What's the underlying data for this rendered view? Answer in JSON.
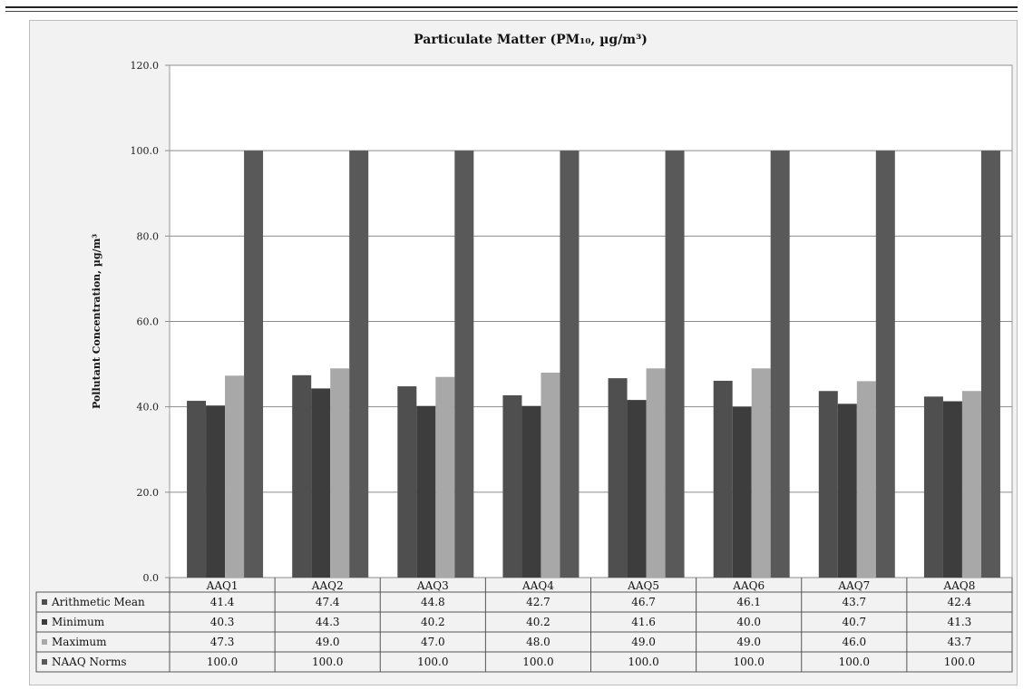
{
  "chart_data": {
    "type": "bar",
    "title": "Particulate Matter (PM₁₀, µg/m³)",
    "ylabel": "Pollutant Concentration, µg/m³",
    "xlabel": "",
    "ylim": [
      0,
      120
    ],
    "yticks": [
      "0.0",
      "20.0",
      "40.0",
      "60.0",
      "80.0",
      "100.0",
      "120.0"
    ],
    "grid": true,
    "legend": "data-table-bottom",
    "categories": [
      "AAQ1",
      "AAQ2",
      "AAQ3",
      "AAQ4",
      "AAQ5",
      "AAQ6",
      "AAQ7",
      "AAQ8"
    ],
    "series": [
      {
        "name": "Arithmetic Mean",
        "color": "#4f4f4f",
        "values": [
          41.4,
          47.4,
          44.8,
          42.7,
          46.7,
          46.1,
          43.7,
          42.4
        ],
        "labels": [
          "41.4",
          "47.4",
          "44.8",
          "42.7",
          "46.7",
          "46.1",
          "43.7",
          "42.4"
        ]
      },
      {
        "name": "Minimum",
        "color": "#3d3d3d",
        "values": [
          40.3,
          44.3,
          40.2,
          40.2,
          41.6,
          40.0,
          40.7,
          41.3
        ],
        "labels": [
          "40.3",
          "44.3",
          "40.2",
          "40.2",
          "41.6",
          "40.0",
          "40.7",
          "41.3"
        ]
      },
      {
        "name": "Maximum",
        "color": "#a8a8a8",
        "values": [
          47.3,
          49.0,
          47.0,
          48.0,
          49.0,
          49.0,
          46.0,
          43.7
        ],
        "labels": [
          "47.3",
          "49.0",
          "47.0",
          "48.0",
          "49.0",
          "49.0",
          "46.0",
          "43.7"
        ]
      },
      {
        "name": "NAAQ Norms",
        "color": "#595959",
        "values": [
          100.0,
          100.0,
          100.0,
          100.0,
          100.0,
          100.0,
          100.0,
          100.0
        ],
        "labels": [
          "100.0",
          "100.0",
          "100.0",
          "100.0",
          "100.0",
          "100.0",
          "100.0",
          "100.0"
        ]
      }
    ]
  }
}
